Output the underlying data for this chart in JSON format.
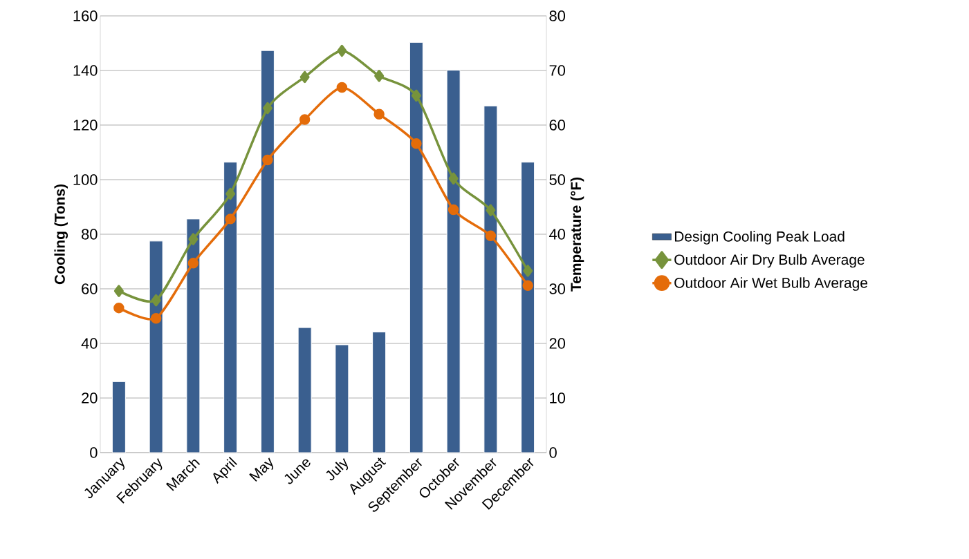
{
  "chart_data": {
    "type": "bar",
    "ylabel": "Cooling (Tons)",
    "y2label": "Temperature (°F)",
    "categories": [
      "January",
      "February",
      "March",
      "April",
      "May",
      "June",
      "July",
      "August",
      "September",
      "October",
      "November",
      "December"
    ],
    "series": [
      {
        "name": "Design Cooling Peak Load",
        "color": "#3a5f8f",
        "values": [
          26,
          77.5,
          85.6,
          106.4,
          147.3,
          45.8,
          39.5,
          44.2,
          150.3,
          140.1,
          127,
          106.4
        ]
      },
      {
        "name": "Outdoor Air Dry Bulb Average",
        "type": "line",
        "axis": "y2",
        "marker": "diamond",
        "color": "#77933c",
        "values": [
          29.6,
          27.9,
          39.1,
          47.4,
          63.1,
          68.8,
          73.6,
          69,
          65.4,
          50.2,
          44.4,
          33.3
        ]
      },
      {
        "name": "Outdoor Air Wet Bulb Average",
        "type": "line",
        "axis": "y2",
        "marker": "circle",
        "color": "#e46c0a",
        "values": [
          26.5,
          24.6,
          34.7,
          42.8,
          53.6,
          61,
          66.9,
          62,
          56.6,
          44.5,
          39.7,
          30.6
        ]
      }
    ],
    "ylim": [
      0,
      160
    ],
    "yticks": [
      0,
      20,
      40,
      60,
      80,
      100,
      120,
      140,
      160
    ],
    "y2lim": [
      0,
      80
    ],
    "y2ticks": [
      0,
      10,
      20,
      30,
      40,
      50,
      60,
      70,
      80
    ],
    "grid": "y",
    "legend": "right"
  }
}
